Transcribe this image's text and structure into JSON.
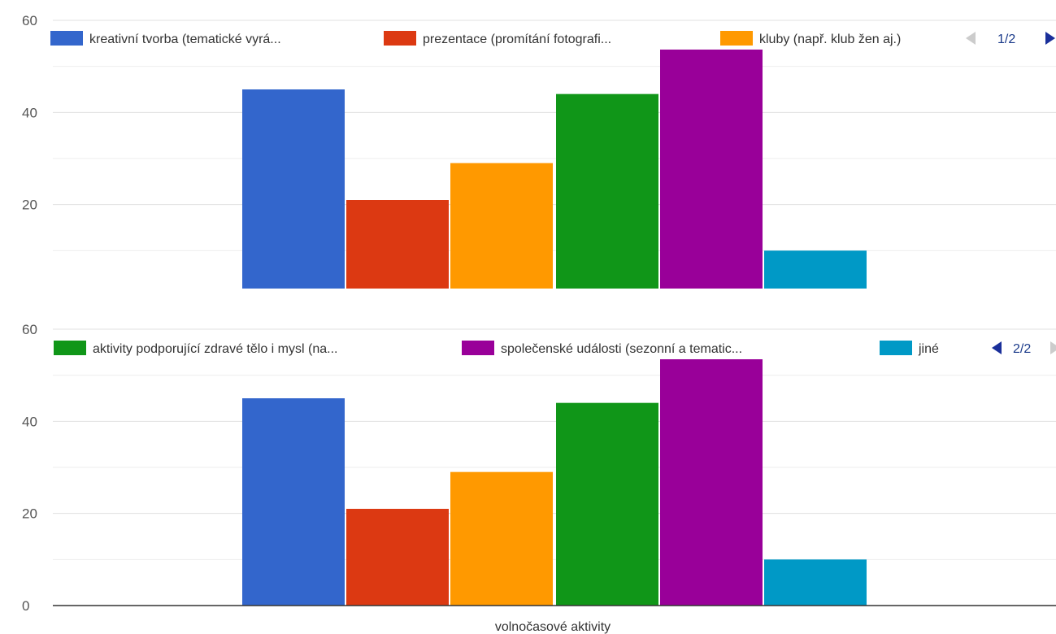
{
  "chart_data": [
    {
      "type": "bar",
      "categories": [
        "volnočasové aktivity"
      ],
      "series": [
        {
          "name": "kreativní tvorba (tematické vyrá...",
          "values": [
            45
          ],
          "color": "#3366cc"
        },
        {
          "name": "prezentace (promítání fotografi...",
          "values": [
            21
          ],
          "color": "#dc3912"
        },
        {
          "name": "kluby (např. klub žen aj.)",
          "values": [
            29
          ],
          "color": "#ff9900"
        },
        {
          "name": "aktivity podporující zdravé tělo i mysl (na...",
          "values": [
            44
          ],
          "color": "#109618"
        },
        {
          "name": "společenské události (sezonní a tematic...",
          "values": [
            54
          ],
          "color": "#990099"
        },
        {
          "name": "jiné",
          "values": [
            10
          ],
          "color": "#0099c6"
        }
      ],
      "legend_visible": [
        0,
        1,
        2
      ],
      "legend_placement": "top",
      "pager": "1/2",
      "yticks": [
        "20",
        "40",
        "60"
      ],
      "ylim": [
        0,
        60
      ],
      "grid": true,
      "xlabel": ""
    },
    {
      "type": "bar",
      "categories": [
        "volnočasové aktivity"
      ],
      "series": [
        {
          "name": "kreativní tvorba (tematické vyrá...",
          "values": [
            45
          ],
          "color": "#3366cc"
        },
        {
          "name": "prezentace (promítání fotografi...",
          "values": [
            21
          ],
          "color": "#dc3912"
        },
        {
          "name": "kluby (např. klub žen aj.)",
          "values": [
            29
          ],
          "color": "#ff9900"
        },
        {
          "name": "aktivity podporující zdravé tělo i mysl (na...",
          "values": [
            44
          ],
          "color": "#109618"
        },
        {
          "name": "společenské události (sezonní a tematic...",
          "values": [
            54
          ],
          "color": "#990099"
        },
        {
          "name": "jiné",
          "values": [
            10
          ],
          "color": "#0099c6"
        }
      ],
      "legend_visible": [
        3,
        4,
        5
      ],
      "legend_placement": "top",
      "pager": "2/2",
      "yticks": [
        "0",
        "20",
        "40",
        "60"
      ],
      "ylim": [
        0,
        60
      ],
      "grid": true,
      "xlabel": "volnočasové aktivity"
    }
  ]
}
